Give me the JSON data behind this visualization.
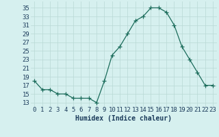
{
  "x": [
    0,
    1,
    2,
    3,
    4,
    5,
    6,
    7,
    8,
    9,
    10,
    11,
    12,
    13,
    14,
    15,
    16,
    17,
    18,
    19,
    20,
    21,
    22,
    23
  ],
  "y": [
    18,
    16,
    16,
    15,
    15,
    14,
    14,
    14,
    13,
    18,
    24,
    26,
    29,
    32,
    33,
    35,
    35,
    34,
    31,
    26,
    23,
    20,
    17,
    17
  ],
  "xlabel": "Humidex (Indice chaleur)",
  "yticks": [
    13,
    15,
    17,
    19,
    21,
    23,
    25,
    27,
    29,
    31,
    33,
    35
  ],
  "ylim": [
    12.0,
    36.5
  ],
  "xlim": [
    -0.5,
    23.5
  ],
  "line_color": "#1a6b5a",
  "marker": "+",
  "marker_size": 4,
  "bg_color": "#d6f0ef",
  "grid_color": "#b8d8d5",
  "tick_label_color": "#1a3a5a",
  "font_size": 6.5,
  "xlabel_fontsize": 7.0,
  "linewidth": 0.9
}
